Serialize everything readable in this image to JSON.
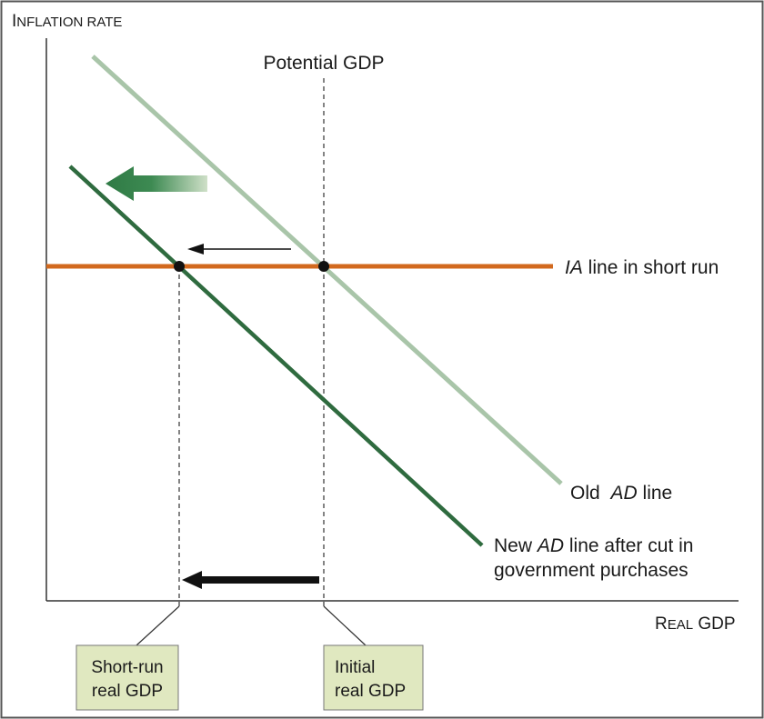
{
  "y_axis_label": {
    "first": "I",
    "rest": "NFLATION RATE"
  },
  "x_axis_label": {
    "first1": "R",
    "rest1": "EAL",
    "word2": " GDP"
  },
  "potential_label": "Potential GDP",
  "ia_label": {
    "italic": "IA",
    "rest": " line in short run"
  },
  "old_ad_label": {
    "pre": "Old ",
    "italic": "AD",
    "post": " line"
  },
  "new_ad_label": {
    "pre": "New ",
    "italic": "AD",
    "post": " line after cut in",
    "line2": "government purchases"
  },
  "box_short_run": {
    "line1": "Short-run",
    "line2": "real GDP"
  },
  "box_initial": {
    "line1": "Initial",
    "line2": "real GDP"
  },
  "colors": {
    "ia_line": "#d2691e",
    "old_ad": "#a9c5a9",
    "new_ad": "#2f6b3f",
    "arrow_dark": "#111111",
    "shift_arrow": "#2f7a45",
    "box_fill": "#e0e8c0",
    "frame": "#555555"
  }
}
